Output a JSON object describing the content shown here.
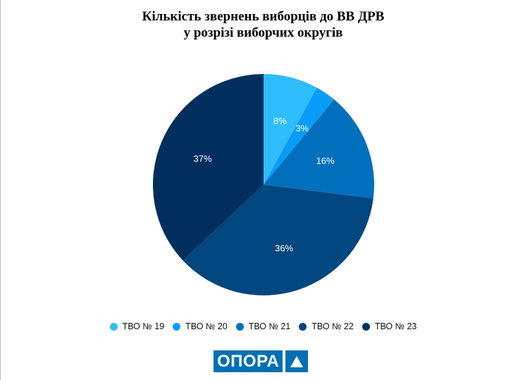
{
  "chart_data": {
    "type": "pie",
    "title_line1": "Кількість звернень виборців до ВВ ДРВ",
    "title_line2": "у розрізі виборчих округів",
    "categories": [
      "ТВО № 19",
      "ТВО № 20",
      "ТВО № 21",
      "ТВО № 22",
      "ТВО № 23"
    ],
    "values": [
      8,
      3,
      16,
      36,
      37
    ],
    "labels": [
      "8%",
      "3%",
      "16%",
      "36%",
      "37%"
    ],
    "colors": [
      "#2ebdfe",
      "#0a9cfb",
      "#0070bd",
      "#00467f",
      "#002f5f"
    ],
    "legend_position": "bottom"
  },
  "logo": {
    "text": "ОПОРА",
    "icon": "triangle-icon",
    "color": "#0070b5"
  }
}
